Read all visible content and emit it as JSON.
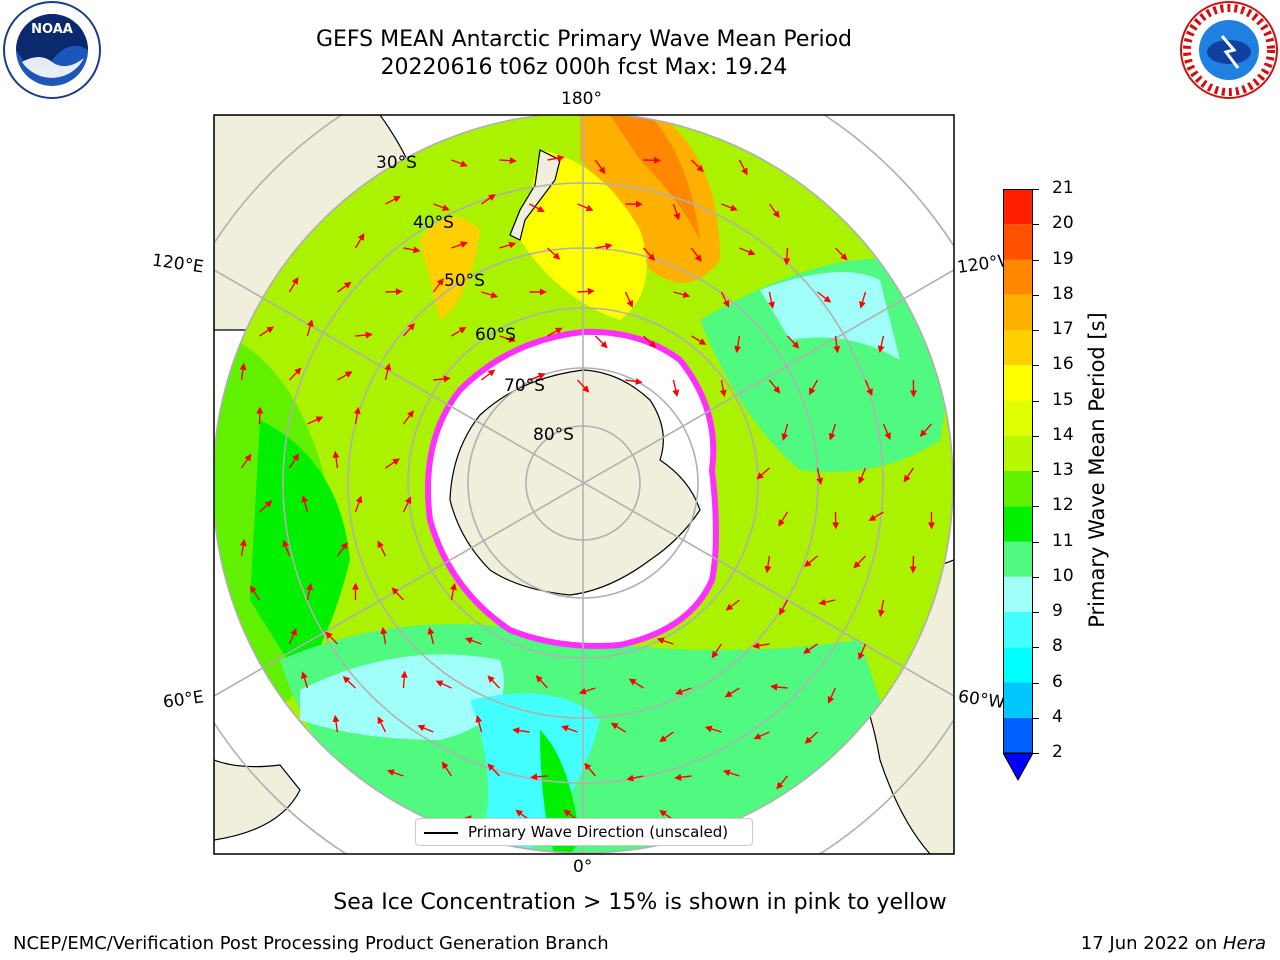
{
  "header": {
    "title_line1": "GEFS MEAN Antarctic Primary Wave Mean Period",
    "title_line2": "20220616 t06z 000h fcst   Max: 19.24"
  },
  "logos": {
    "left": "noaa-logo",
    "right": "nws-logo",
    "left_text": "NOAA",
    "right_ring_text": "NATIONAL WEATHER SERVICE"
  },
  "map": {
    "projection": "south-polar-stereographic",
    "lon_labels": {
      "top": "180°",
      "bottom": "0°",
      "upper_left": "120°E",
      "upper_right": "120°W",
      "lower_left": "60°E",
      "lower_right": "60°W"
    },
    "lat_labels": [
      "30°S",
      "40°S",
      "50°S",
      "60°S",
      "70°S",
      "80°S"
    ],
    "legend_label": "Primary Wave Direction (unscaled)",
    "arrow_color": "#ff0000",
    "land_color": "#efefdc",
    "sea_ice_color": "#ffffff"
  },
  "colorbar": {
    "label": "Primary Wave Mean Period [s]",
    "ticks": [
      "2",
      "4",
      "6",
      "8",
      "9",
      "10",
      "11",
      "12",
      "13",
      "14",
      "15",
      "16",
      "17",
      "18",
      "19",
      "20",
      "21"
    ],
    "colors": [
      "#0060ff",
      "#00c8ff",
      "#00ffff",
      "#44ffff",
      "#a0fff8",
      "#50fa80",
      "#00f000",
      "#60f000",
      "#b8f800",
      "#e0ff00",
      "#ffff00",
      "#ffd000",
      "#ffb000",
      "#ff8800",
      "#ff5000",
      "#ff2000"
    ],
    "extend_color": "#0000ff"
  },
  "footer": {
    "note": "Sea Ice Concentration > 15% is shown in pink to yellow",
    "credit": "NCEP/EMC/Verification Post Processing Product Generation Branch",
    "date": "17 Jun 2022 on ",
    "machine": "Hera"
  }
}
